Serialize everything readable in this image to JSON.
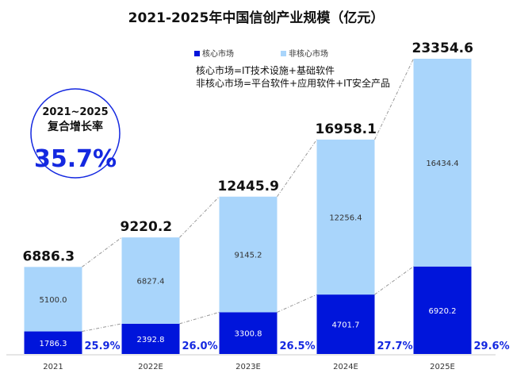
{
  "chart_data": {
    "type": "bar",
    "stacked": true,
    "title": "2021-2025年中国信创产业规模（亿元）",
    "categories": [
      "2021",
      "2022E",
      "2023E",
      "2024E",
      "2025E"
    ],
    "series": [
      {
        "name": "核心市场",
        "values": [
          1786.3,
          2392.8,
          3300.8,
          4701.7,
          6920.2
        ],
        "color": "#0015DB"
      },
      {
        "name": "非核心市场",
        "values": [
          5100.0,
          6827.4,
          9145.2,
          12256.4,
          16434.4
        ],
        "color": "#A9D5FB"
      }
    ],
    "totals": [
      "6886.3",
      "9220.2",
      "12445.9",
      "16958.1",
      "23354.6"
    ],
    "core_labels": [
      "1786.3",
      "2392.8",
      "3300.8",
      "4701.7",
      "6920.2"
    ],
    "noncore_labels": [
      "5100.0",
      "6827.4",
      "9145.2",
      "12256.4",
      "16434.4"
    ],
    "core_share_labels": [
      "25.9%",
      "26.0%",
      "26.5%",
      "27.7%",
      "29.6%"
    ],
    "legend_position": "top",
    "grid": false,
    "ylim": [
      0,
      23354.6
    ],
    "notes": [
      "核心市场=IT技术设施+基础软件",
      "非核心市场=平台软件+应用软件+IT安全产品"
    ],
    "cagr": {
      "label_line1": "2021~2025",
      "label_line2": "复合增长率",
      "value": "35.7%"
    },
    "accent_color": "#1428E0"
  }
}
